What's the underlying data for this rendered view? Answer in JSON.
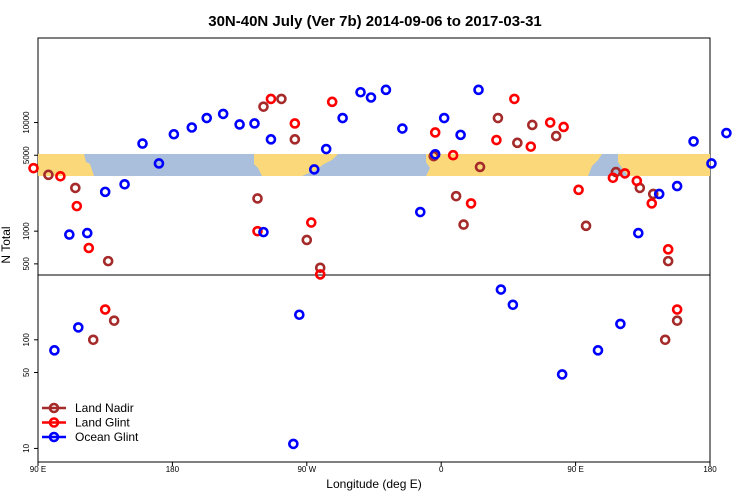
{
  "chart_data": {
    "type": "scatter",
    "title": "30N-40N July (Ver 7b)   2014-09-06 to 2017-03-31",
    "xlabel": "Longitude (deg E)",
    "ylabel": "N Total",
    "x_ticks": [
      {
        "value": 90,
        "label": "90 E"
      },
      {
        "value": 180,
        "label": "180"
      },
      {
        "value": 270,
        "label": "90 W"
      },
      {
        "value": 360,
        "label": "0"
      },
      {
        "value": 450,
        "label": "90 E"
      },
      {
        "value": 540,
        "label": "180"
      }
    ],
    "xlim": [
      90,
      540
    ],
    "y_ticks": [
      10,
      50,
      100,
      500,
      1000,
      5000,
      10000
    ],
    "ylim_log": [
      7.5,
      60000
    ],
    "legend_position": "bottom-left",
    "series": [
      {
        "name": "Land Nadir",
        "color": "#A52A2A",
        "points": [
          [
            97,
            3300
          ],
          [
            115,
            2500
          ],
          [
            127,
            100
          ],
          [
            137,
            530
          ],
          [
            141,
            150
          ],
          [
            237,
            2000
          ],
          [
            241,
            14000
          ],
          [
            253,
            16500
          ],
          [
            262,
            7000
          ],
          [
            270,
            830
          ],
          [
            279,
            460
          ],
          [
            355,
            4900
          ],
          [
            370,
            2100
          ],
          [
            375,
            1150
          ],
          [
            386,
            3900
          ],
          [
            398,
            11000
          ],
          [
            411,
            6500
          ],
          [
            421,
            9500
          ],
          [
            437,
            7500
          ],
          [
            457,
            1120
          ],
          [
            477,
            3500
          ],
          [
            493,
            2500
          ],
          [
            502,
            2200
          ],
          [
            510,
            100
          ],
          [
            512,
            530
          ],
          [
            518,
            150
          ]
        ]
      },
      {
        "name": "Land Glint",
        "color": "#FF0000",
        "points": [
          [
            87,
            3800
          ],
          [
            105,
            3200
          ],
          [
            116,
            1700
          ],
          [
            124,
            700
          ],
          [
            135,
            190
          ],
          [
            237,
            1000
          ],
          [
            246,
            16500
          ],
          [
            262,
            9800
          ],
          [
            279,
            400
          ],
          [
            273,
            1200
          ],
          [
            287,
            15500
          ],
          [
            356,
            8100
          ],
          [
            368,
            5000
          ],
          [
            380,
            1800
          ],
          [
            397,
            6900
          ],
          [
            409,
            16500
          ],
          [
            420,
            6000
          ],
          [
            433,
            10000
          ],
          [
            442,
            9100
          ],
          [
            452,
            2400
          ],
          [
            475,
            3100
          ],
          [
            483,
            3400
          ],
          [
            491,
            2900
          ],
          [
            501,
            1800
          ],
          [
            512,
            680
          ],
          [
            518,
            190
          ]
        ]
      },
      {
        "name": "Ocean Glint",
        "color": "#0000FF",
        "points": [
          [
            101,
            80
          ],
          [
            111,
            930
          ],
          [
            117,
            130
          ],
          [
            123,
            960
          ],
          [
            135,
            2300
          ],
          [
            148,
            2700
          ],
          [
            160,
            6400
          ],
          [
            171,
            4200
          ],
          [
            181,
            7800
          ],
          [
            193,
            9000
          ],
          [
            203,
            11000
          ],
          [
            214,
            12000
          ],
          [
            225,
            9600
          ],
          [
            235,
            9800
          ],
          [
            241,
            980
          ],
          [
            246,
            7000
          ],
          [
            261,
            11
          ],
          [
            265,
            170
          ],
          [
            275,
            3700
          ],
          [
            283,
            5700
          ],
          [
            294,
            11000
          ],
          [
            306,
            19000
          ],
          [
            313,
            17000
          ],
          [
            323,
            20000
          ],
          [
            334,
            8800
          ],
          [
            346,
            1500
          ],
          [
            356,
            5100
          ],
          [
            362,
            11000
          ],
          [
            373,
            7700
          ],
          [
            385,
            20000
          ],
          [
            400,
            290
          ],
          [
            408,
            210
          ],
          [
            441,
            48
          ],
          [
            465,
            80
          ],
          [
            480,
            140
          ],
          [
            492,
            960
          ],
          [
            506,
            2200
          ],
          [
            518,
            2600
          ],
          [
            529,
            6700
          ],
          [
            541,
            4200
          ],
          [
            551,
            8000
          ]
        ]
      }
    ]
  }
}
